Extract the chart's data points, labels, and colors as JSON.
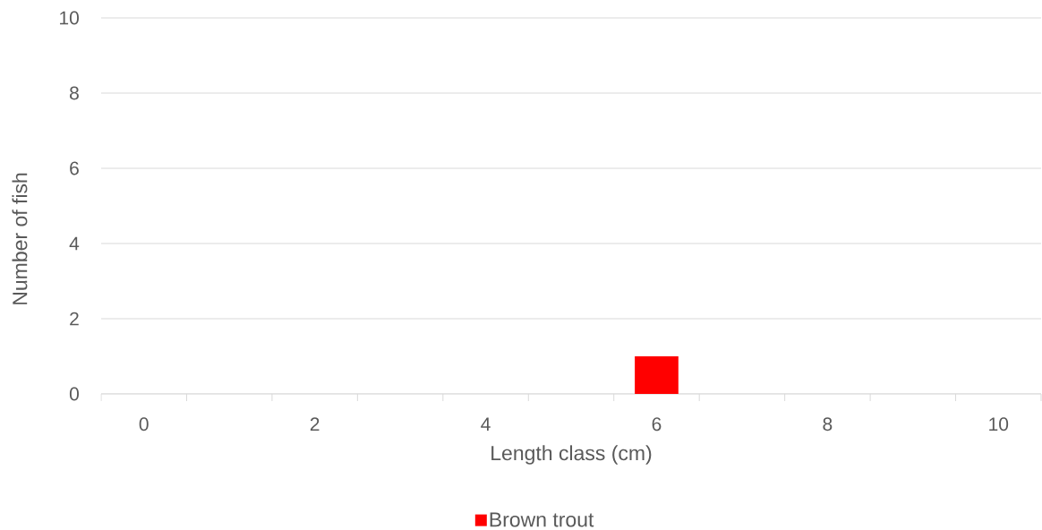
{
  "chart_data": {
    "type": "bar",
    "xlabel": "Length class (cm)",
    "ylabel": "Number of fish",
    "categories": [
      "0",
      null,
      "2",
      null,
      "4",
      null,
      "6",
      null,
      "8",
      null,
      "10"
    ],
    "series": [
      {
        "name": "Brown trout",
        "color": "#ff0000",
        "values": [
          0,
          0,
          0,
          0,
          0,
          0,
          1,
          0,
          0,
          0,
          0
        ]
      }
    ],
    "ylim": [
      0,
      10
    ],
    "yticks": [
      0,
      2,
      4,
      6,
      8,
      10
    ],
    "grid": "y",
    "legend": "bottom"
  }
}
